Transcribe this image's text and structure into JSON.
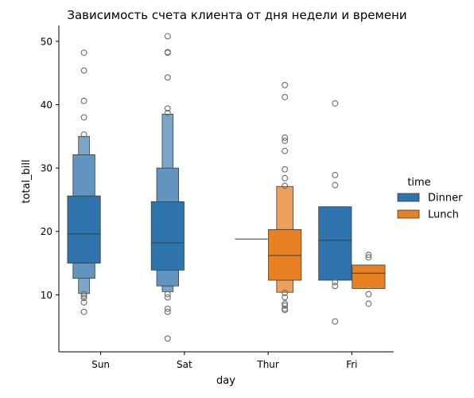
{
  "chart_data": {
    "type": "boxen",
    "title": "Зависимость счета клиента от дня недели и времени",
    "xlabel": "day",
    "ylabel": "total_bill",
    "categories": [
      "Sun",
      "Sat",
      "Thur",
      "Fri"
    ],
    "ylim": [
      1.0,
      52.5
    ],
    "yticks": [
      10,
      20,
      30,
      40,
      50
    ],
    "grid": false,
    "legend": {
      "title": "time",
      "placement": "right",
      "entries": [
        {
          "name": "Dinner",
          "color": "#2f74ac"
        },
        {
          "name": "Lunch",
          "color": "#e88124"
        }
      ]
    },
    "series": [
      {
        "name": "Dinner",
        "color": "#2f74ac",
        "boxes": [
          {
            "category": "Sun",
            "median": 19.6,
            "levels": [
              [
                15.0,
                25.6
              ],
              [
                12.6,
                32.1
              ],
              [
                10.2,
                35.0
              ]
            ],
            "outliers": [
              48.2,
              45.4,
              40.6,
              38.0,
              35.3,
              10.1,
              9.8,
              9.5,
              8.8,
              7.3
            ]
          },
          {
            "category": "Sat",
            "median": 18.2,
            "levels": [
              [
                13.9,
                24.7
              ],
              [
                11.4,
                30.0
              ],
              [
                10.5,
                38.5
              ]
            ],
            "outliers": [
              50.8,
              48.3,
              48.2,
              44.3,
              39.4,
              38.7,
              10.1,
              9.6,
              7.8,
              7.3,
              3.1
            ]
          },
          {
            "category": "Thur",
            "median": 18.8,
            "levels": [],
            "outliers": []
          },
          {
            "category": "Fri",
            "median": 18.6,
            "levels": [
              [
                12.3,
                23.9
              ]
            ],
            "outliers": [
              40.2,
              28.9,
              27.3,
              12.0,
              11.4,
              5.8
            ]
          }
        ]
      },
      {
        "name": "Lunch",
        "color": "#e88124",
        "boxes": [
          {
            "category": "Thur",
            "median": 16.2,
            "levels": [
              [
                12.3,
                20.3
              ],
              [
                10.4,
                27.1
              ]
            ],
            "outliers": [
              43.1,
              41.2,
              34.8,
              34.3,
              32.7,
              29.8,
              28.4,
              27.2,
              10.3,
              9.6,
              8.6,
              8.3,
              7.8,
              7.6
            ]
          },
          {
            "category": "Fri",
            "median": 13.4,
            "levels": [
              [
                11.0,
                14.7
              ]
            ],
            "outliers": [
              16.3,
              15.9,
              10.1,
              8.6
            ]
          }
        ]
      }
    ]
  }
}
